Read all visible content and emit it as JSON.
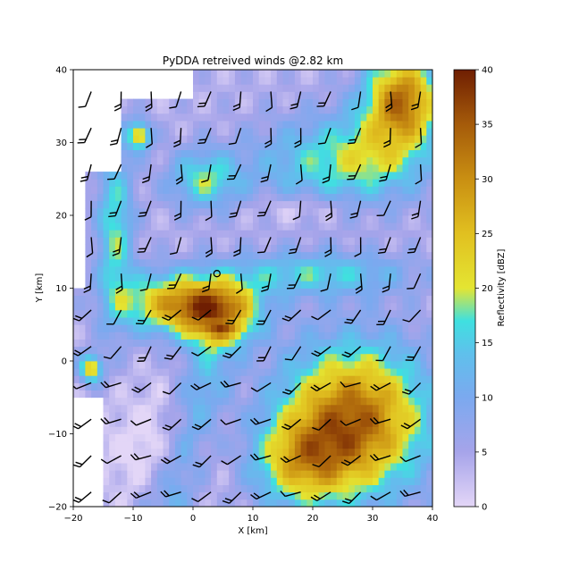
{
  "chart_data": {
    "type": "heatmap",
    "title": "PyDDA retreived winds @2.82 km",
    "xlabel": "X [km]",
    "ylabel": "Y [km]",
    "xlim": [
      -20,
      40
    ],
    "ylim": [
      -20,
      40
    ],
    "x_ticks": [
      "−20",
      "−10",
      "0",
      "10",
      "20",
      "30",
      "40"
    ],
    "y_ticks": [
      "−20",
      "−10",
      "0",
      "10",
      "20",
      "30",
      "40"
    ],
    "colorbar": {
      "label": "Reflectivity [dBZ]",
      "range": [
        0,
        40
      ],
      "ticks": [
        "0",
        "5",
        "10",
        "15",
        "20",
        "25",
        "30",
        "35",
        "40"
      ],
      "stops": [
        {
          "v": 0,
          "c": "#e3d6f7"
        },
        {
          "v": 5,
          "c": "#a6a4ea"
        },
        {
          "v": 10,
          "c": "#7ba9ef"
        },
        {
          "v": 14,
          "c": "#5fc0ec"
        },
        {
          "v": 17,
          "c": "#3fe0e0"
        },
        {
          "v": 20,
          "c": "#e4e532"
        },
        {
          "v": 25,
          "c": "#e1c020"
        },
        {
          "v": 30,
          "c": "#c98f12"
        },
        {
          "v": 35,
          "c": "#a55b0a"
        },
        {
          "v": 40,
          "c": "#6f1e02"
        }
      ]
    },
    "wind_barbs": "black, every ~5 km",
    "marker": {
      "x": 4,
      "y": 12,
      "shape": "open-circle"
    },
    "grid": false
  }
}
